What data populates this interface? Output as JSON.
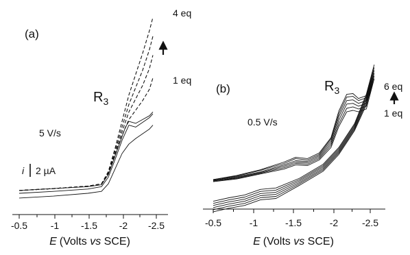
{
  "colors": {
    "ink": "#111111",
    "background": "#ffffff"
  },
  "chart_data": [
    {
      "panel": "(a)",
      "type": "line",
      "xlabel": {
        "E": "E",
        "rest_a": "(Volts ",
        "vs": "vs",
        "rest_b": " SCE)"
      },
      "xlim": [
        -0.5,
        -2.5
      ],
      "xticks": [
        "-0.5",
        "-1",
        "-1.5",
        "-2",
        "-2.5"
      ],
      "y_axis_visible": false,
      "scale_bar": {
        "symbol": "i",
        "label": "2 µA",
        "value_uA": 2
      },
      "annotations": {
        "peak_label": "R",
        "peak_sub": "3",
        "scan_rate": "5 V/s",
        "top_eq": "4 eq",
        "bottom_eq": "1 eq",
        "arrow": "increasing equivalents"
      },
      "series": [
        {
          "style": "solid",
          "x": [
            -0.5,
            -1.0,
            -1.5,
            -1.7,
            -1.8,
            -1.9,
            -2.0,
            -2.05,
            -2.1,
            -2.2,
            -2.3,
            -2.4,
            -2.45
          ],
          "y": [
            0.3,
            0.5,
            0.7,
            0.9,
            2.0,
            4.0,
            6.0,
            7.0,
            7.6,
            7.4,
            7.8,
            8.2,
            8.6
          ]
        },
        {
          "style": "solid",
          "x": [
            -0.5,
            -1.0,
            -1.5,
            -1.7,
            -1.8,
            -1.9,
            -2.0,
            -2.1,
            -2.2,
            -2.3,
            -2.4,
            -2.45
          ],
          "y": [
            0.0,
            0.2,
            0.45,
            0.7,
            1.7,
            3.6,
            5.6,
            7.2,
            7.0,
            7.5,
            8.0,
            8.4
          ]
        },
        {
          "style": "solid",
          "x": [
            -0.5,
            -1.0,
            -1.5,
            -1.7,
            -1.8,
            -1.9,
            -2.0,
            -2.1,
            -2.2,
            -2.3,
            -2.4,
            -2.45
          ],
          "y": [
            -0.5,
            -0.3,
            0.0,
            0.2,
            1.0,
            2.6,
            4.2,
            5.2,
            5.8,
            6.3,
            6.8,
            7.2
          ]
        },
        {
          "style": "dashed",
          "x": [
            -0.5,
            -1.0,
            -1.5,
            -1.7,
            -1.8,
            -1.9,
            -2.0,
            -2.1,
            -2.2,
            -2.3,
            -2.4,
            -2.45
          ],
          "y": [
            0.3,
            0.5,
            0.75,
            1.0,
            2.3,
            4.8,
            7.6,
            10.4,
            12.6,
            14.8,
            17.2,
            18.6
          ]
        },
        {
          "style": "dashed",
          "x": [
            -0.5,
            -1.0,
            -1.5,
            -1.7,
            -1.8,
            -1.9,
            -2.0,
            -2.1,
            -2.2,
            -2.3,
            -2.4,
            -2.45
          ],
          "y": [
            0.3,
            0.5,
            0.75,
            1.0,
            2.2,
            4.5,
            7.0,
            9.4,
            11.2,
            13.0,
            15.2,
            16.6
          ]
        },
        {
          "style": "dashed",
          "x": [
            -0.5,
            -1.0,
            -1.5,
            -1.7,
            -1.8,
            -1.9,
            -2.0,
            -2.1,
            -2.2,
            -2.3,
            -2.4,
            -2.45
          ],
          "y": [
            0.3,
            0.5,
            0.75,
            1.0,
            2.1,
            4.2,
            6.5,
            8.6,
            10.0,
            11.4,
            13.2,
            14.6
          ]
        },
        {
          "style": "dashed",
          "x": [
            -0.5,
            -1.0,
            -1.5,
            -1.7,
            -1.8,
            -1.9,
            -2.0,
            -2.1,
            -2.2,
            -2.3,
            -2.4,
            -2.45
          ],
          "y": [
            0.3,
            0.5,
            0.75,
            1.0,
            2.0,
            4.0,
            6.1,
            7.8,
            8.8,
            9.8,
            11.0,
            12.2
          ]
        }
      ]
    },
    {
      "panel": "(b)",
      "type": "line",
      "xlabel": {
        "E": "E",
        "rest_a": "(Volts ",
        "vs": "vs",
        "rest_b": " SCE)"
      },
      "xlim": [
        -0.5,
        -2.5
      ],
      "xticks": [
        "-0.5",
        "-1",
        "-1.5",
        "-2",
        "-2.5"
      ],
      "y_axis_visible": false,
      "annotations": {
        "peak_label": "R",
        "peak_sub": "3",
        "scan_rate": "0.5 V/s",
        "top_eq": "6 eq",
        "bottom_eq": "1 eq",
        "arrow": "increasing equivalents"
      },
      "series": [
        {
          "style": "solid",
          "x": [
            -0.5,
            -0.8,
            -1.1,
            -1.4,
            -1.55,
            -1.7,
            -1.85,
            -2.0,
            -2.1,
            -2.2,
            -2.28,
            -2.35,
            -2.45,
            -2.55,
            -2.45,
            -2.3,
            -2.1,
            -1.9,
            -1.6,
            -1.3,
            -1.1,
            -0.9,
            -0.7,
            -0.5
          ],
          "y": [
            0.0,
            0.6,
            1.4,
            2.5,
            3.2,
            3.0,
            3.8,
            6.0,
            9.8,
            12.2,
            12.3,
            11.6,
            12.0,
            16.4,
            12.2,
            8.0,
            4.6,
            2.2,
            0.2,
            -1.2,
            -1.4,
            -2.2,
            -2.6,
            -3.1
          ]
        },
        {
          "style": "solid",
          "x": [
            -0.5,
            -0.8,
            -1.1,
            -1.4,
            -1.55,
            -1.7,
            -1.85,
            -2.0,
            -2.1,
            -2.2,
            -2.28,
            -2.35,
            -2.45,
            -2.55,
            -2.45,
            -2.3,
            -2.1,
            -1.9,
            -1.6,
            -1.3,
            -1.1,
            -0.9,
            -0.7,
            -0.5
          ],
          "y": [
            0.0,
            0.5,
            1.3,
            2.3,
            3.0,
            2.8,
            3.6,
            5.8,
            9.4,
            11.8,
            11.9,
            11.3,
            11.7,
            16.0,
            11.9,
            7.8,
            4.4,
            2.0,
            0.0,
            -1.5,
            -1.7,
            -2.5,
            -2.9,
            -3.4
          ]
        },
        {
          "style": "solid",
          "x": [
            -0.5,
            -0.8,
            -1.1,
            -1.4,
            -1.55,
            -1.7,
            -1.85,
            -2.0,
            -2.1,
            -2.2,
            -2.28,
            -2.35,
            -2.45,
            -2.55,
            -2.45,
            -2.3,
            -2.1,
            -1.9,
            -1.6,
            -1.3,
            -1.1,
            -0.9,
            -0.7,
            -0.5
          ],
          "y": [
            -0.1,
            0.4,
            1.1,
            2.1,
            2.7,
            2.6,
            3.4,
            5.5,
            9.0,
            11.3,
            11.4,
            10.9,
            11.3,
            15.6,
            11.6,
            7.6,
            4.2,
            1.8,
            -0.2,
            -1.8,
            -2.0,
            -2.8,
            -3.2,
            -3.7
          ]
        },
        {
          "style": "solid",
          "x": [
            -0.5,
            -0.8,
            -1.1,
            -1.4,
            -1.55,
            -1.7,
            -1.85,
            -2.0,
            -2.1,
            -2.2,
            -2.28,
            -2.35,
            -2.45,
            -2.55,
            -2.45,
            -2.3,
            -2.1,
            -1.9,
            -1.6,
            -1.3,
            -1.1,
            -0.9,
            -0.7,
            -0.5
          ],
          "y": [
            -0.2,
            0.3,
            1.0,
            1.9,
            2.5,
            2.4,
            3.2,
            5.2,
            8.5,
            10.8,
            10.9,
            10.5,
            10.9,
            15.2,
            11.3,
            7.4,
            4.0,
            1.6,
            -0.4,
            -2.1,
            -2.3,
            -3.1,
            -3.5,
            -4.0
          ]
        },
        {
          "style": "solid",
          "x": [
            -0.5,
            -0.8,
            -1.1,
            -1.4,
            -1.55,
            -1.7,
            -1.85,
            -2.0,
            -2.1,
            -2.2,
            -2.28,
            -2.35,
            -2.45,
            -2.55,
            -2.45,
            -2.3,
            -2.1,
            -1.9,
            -1.6,
            -1.3,
            -1.1,
            -0.9,
            -0.7,
            -0.5
          ],
          "y": [
            -0.2,
            0.2,
            0.9,
            1.7,
            2.3,
            2.2,
            3.0,
            4.9,
            8.0,
            10.2,
            10.4,
            10.1,
            10.5,
            14.8,
            11.0,
            7.2,
            3.8,
            1.4,
            -0.6,
            -2.4,
            -2.6,
            -3.4,
            -3.8,
            -4.3
          ]
        },
        {
          "style": "solid",
          "x": [
            -0.5,
            -0.8,
            -1.1,
            -1.4,
            -1.55,
            -1.7,
            -1.85,
            -2.0,
            -2.1,
            -2.2,
            -2.28,
            -2.35,
            -2.45,
            -2.55,
            -2.45,
            -2.3,
            -2.1,
            -1.9,
            -1.6,
            -1.3,
            -1.1,
            -0.9,
            -0.7,
            -0.5
          ],
          "y": [
            -0.3,
            0.1,
            0.8,
            1.5,
            2.1,
            2.0,
            2.8,
            4.6,
            7.6,
            9.7,
            9.9,
            9.7,
            10.1,
            14.4,
            10.7,
            7.0,
            3.6,
            1.2,
            -0.8,
            -2.7,
            -2.9,
            -3.7,
            -4.1,
            -4.6
          ]
        }
      ]
    }
  ]
}
